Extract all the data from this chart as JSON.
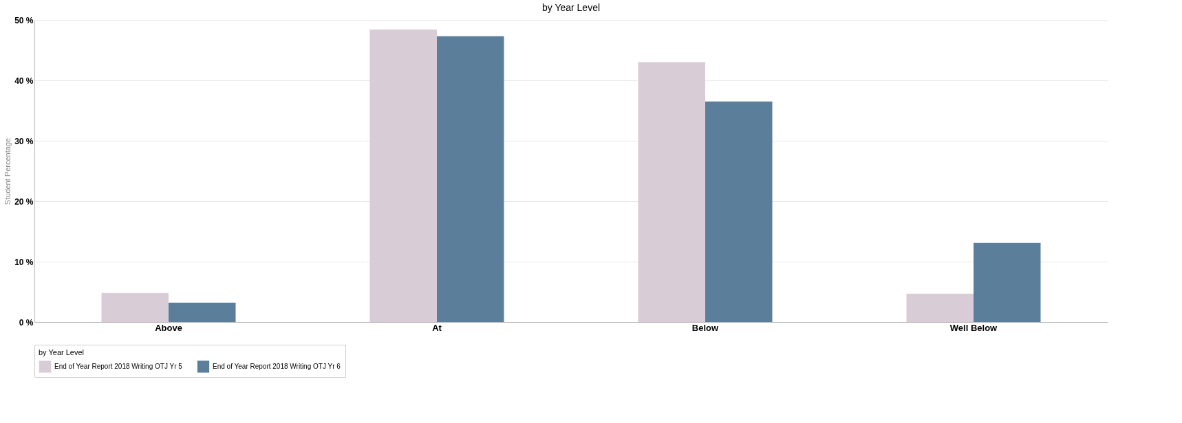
{
  "chart_data": {
    "type": "bar",
    "title": "by Year Level",
    "ylabel": "Student Percentage",
    "legend_title": "by Year Level",
    "categories": [
      "Above",
      "At",
      "Below",
      "Well Below"
    ],
    "series": [
      {
        "name": "End of Year Report 2018 Writing OTJ Yr 5",
        "color": "#d8cdd6",
        "values": [
          4.8,
          48.4,
          43,
          4.7
        ]
      },
      {
        "name": "End of Year Report 2018 Writing OTJ Yr 6",
        "color": "#5b7f9b",
        "values": [
          3.2,
          47.3,
          36.5,
          13.1
        ]
      }
    ],
    "ylim": [
      0,
      50
    ],
    "yticks": [
      {
        "value": 0,
        "label": "0 %"
      },
      {
        "value": 10,
        "label": "10 %"
      },
      {
        "value": 20,
        "label": "20 %"
      },
      {
        "value": 30,
        "label": "30 %"
      },
      {
        "value": 40,
        "label": "40 %"
      },
      {
        "value": 50,
        "label": "50 %"
      }
    ],
    "grid": "y",
    "legend": "bottom"
  }
}
